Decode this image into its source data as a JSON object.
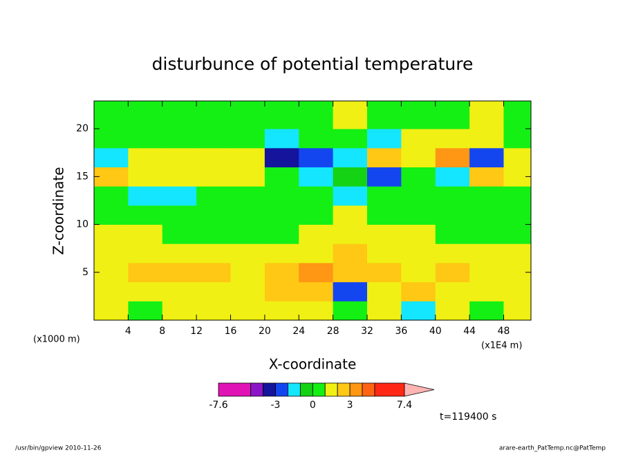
{
  "chart_data": {
    "type": "contour",
    "title": "disturbunce of potential temperature",
    "x_label": "X-coordinate",
    "y_label": "Z-coordinate",
    "x_unit_note": "(x1000 m)",
    "x_scale_note": "(x1E4 m)",
    "time_label": "t=119400 s",
    "footer_left": "/usr/bin/gpview  2010-11-26",
    "footer_right": "arare-earth_PatTemp.nc@PatTemp",
    "xlim": [
      0,
      51.2
    ],
    "ylim": [
      0,
      22.9
    ],
    "xticks": [
      4,
      8,
      12,
      16,
      20,
      24,
      28,
      32,
      36,
      40,
      44,
      48
    ],
    "yticks": [
      5,
      10,
      15,
      20
    ],
    "x": [
      2,
      6,
      10,
      14,
      18,
      22,
      26,
      30,
      34,
      38,
      42,
      46,
      50
    ],
    "z": [
      1,
      3,
      5,
      7,
      9,
      11,
      13,
      15,
      17,
      19,
      21
    ],
    "values": [
      [
        1.5,
        0.5,
        1.5,
        1.5,
        1.5,
        1.5,
        1.5,
        0.5,
        1.5,
        -1.5,
        1.5,
        0.5,
        1.5
      ],
      [
        1.5,
        1.5,
        1.5,
        1.5,
        1.5,
        2.5,
        2.5,
        -2.5,
        1.5,
        2.5,
        1.5,
        1.5,
        1.5
      ],
      [
        1.5,
        2.5,
        2.5,
        2.5,
        1.5,
        2.5,
        3.5,
        2.5,
        2.5,
        1.5,
        2.5,
        1.5,
        1.5
      ],
      [
        1.5,
        1.5,
        1.5,
        1.5,
        1.5,
        1.5,
        1.5,
        2.5,
        1.5,
        1.5,
        1.5,
        1.5,
        1.5
      ],
      [
        1.5,
        1.5,
        0.5,
        0.5,
        0.5,
        0.5,
        1.5,
        1.5,
        1.5,
        1.5,
        0.5,
        0.5,
        0.5
      ],
      [
        0.5,
        0.5,
        0.5,
        0.5,
        0.5,
        0.5,
        0.5,
        1.5,
        0.5,
        0.5,
        0.5,
        0.5,
        0.5
      ],
      [
        0.5,
        -1.5,
        -1.5,
        0.5,
        0.5,
        0.5,
        0.5,
        -1.5,
        0.5,
        0.5,
        0.5,
        0.5,
        0.5
      ],
      [
        2.5,
        1.5,
        1.5,
        1.5,
        1.5,
        0.5,
        -1.5,
        -0.5,
        -2.5,
        0.5,
        -1.5,
        2.5,
        1.5
      ],
      [
        -1.5,
        1.5,
        1.5,
        1.5,
        1.5,
        -3.5,
        -2.5,
        -1.5,
        2.5,
        1.5,
        3.5,
        -2.5,
        1.5
      ],
      [
        0.5,
        0.5,
        0.5,
        0.5,
        0.5,
        -1.5,
        0.5,
        0.5,
        -1.5,
        1.5,
        1.5,
        1.5,
        0.5
      ],
      [
        0.5,
        0.5,
        0.5,
        0.5,
        0.5,
        0.5,
        0.5,
        1.5,
        0.5,
        0.5,
        0.5,
        1.5,
        0.5
      ]
    ],
    "levels": [
      -7.6,
      -5,
      -4,
      -3,
      -2,
      -1,
      0,
      1,
      2,
      3,
      4,
      5,
      7.4
    ],
    "level_colors": [
      "#e014b4",
      "#8c14c8",
      "#14149c",
      "#1446f0",
      "#14e6ff",
      "#14d214",
      "#14f014",
      "#f0f014",
      "#ffc814",
      "#ff9614",
      "#ff6414",
      "#ff2814"
    ],
    "extend_color": "#ffb4b4",
    "colorbar_ticks": [
      -7.6,
      -3,
      0,
      3,
      7.4
    ]
  }
}
